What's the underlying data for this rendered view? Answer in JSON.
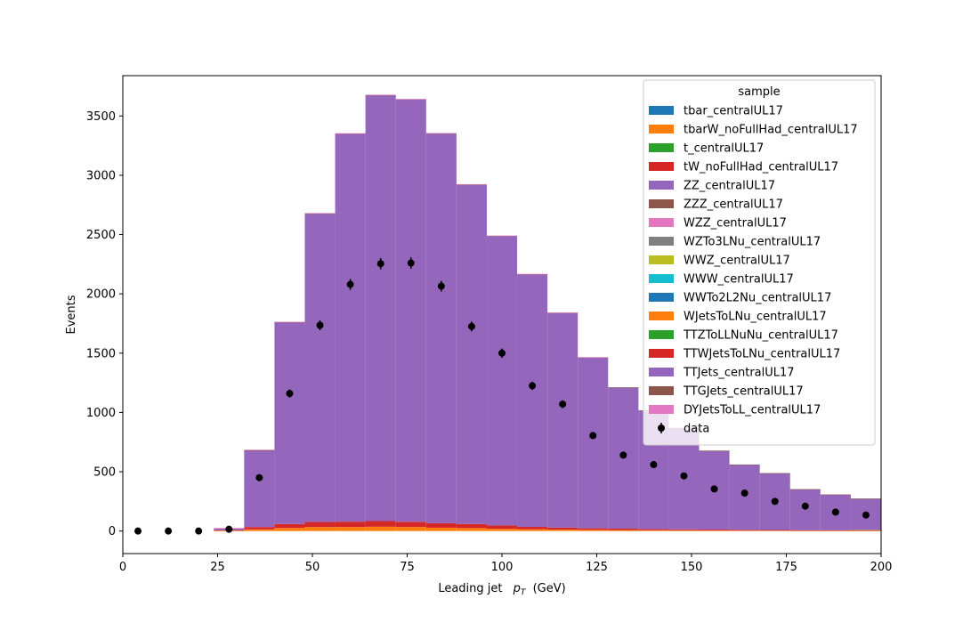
{
  "chart_data": {
    "type": "bar",
    "stacked": true,
    "xlabel_text": "Leading jet",
    "xlabel_symbol": "p",
    "xlabel_subscript": "T",
    "xlabel_unit": "(GeV)",
    "ylabel": "Events",
    "xlim": [
      0,
      200
    ],
    "ylim": [
      -190,
      3840
    ],
    "xticks": [
      0,
      25,
      50,
      75,
      100,
      125,
      150,
      175,
      200
    ],
    "yticks": [
      0,
      500,
      1000,
      1500,
      2000,
      2500,
      3000,
      3500
    ],
    "grid": false,
    "legend_title": "sample",
    "legend_position": "top-right",
    "bin_edges": [
      0,
      8,
      16,
      24,
      32,
      40,
      48,
      56,
      64,
      72,
      80,
      88,
      96,
      104,
      112,
      120,
      128,
      136,
      144,
      152,
      160,
      168,
      176,
      184,
      192,
      200
    ],
    "series": [
      {
        "name": "tbar_centralUL17",
        "color": "#1f77b4",
        "values": [
          0,
          0,
          0,
          0,
          0,
          0,
          0,
          0,
          0,
          0,
          0,
          0,
          0,
          0,
          0,
          0,
          0,
          0,
          0,
          0,
          0,
          0,
          0,
          0,
          0
        ]
      },
      {
        "name": "tbarW_noFullHad_centralUL17",
        "color": "#ff7f0e",
        "values": [
          0,
          0,
          0,
          3,
          14,
          26,
          34,
          34,
          36,
          34,
          28,
          25,
          20,
          15,
          12,
          10,
          9,
          7,
          6,
          5,
          4,
          4,
          3,
          3,
          3
        ]
      },
      {
        "name": "t_centralUL17",
        "color": "#2ca02c",
        "values": [
          0,
          0,
          0,
          0,
          0,
          0,
          0,
          0,
          0,
          0,
          0,
          0,
          0,
          0,
          0,
          0,
          0,
          0,
          0,
          0,
          0,
          0,
          0,
          0,
          0
        ]
      },
      {
        "name": "tW_noFullHad_centralUL17",
        "color": "#d62728",
        "values": [
          0,
          0,
          0,
          5,
          20,
          33,
          42,
          45,
          48,
          44,
          38,
          34,
          27,
          20,
          17,
          13,
          11,
          9,
          8,
          7,
          6,
          5,
          4,
          4,
          3
        ]
      },
      {
        "name": "ZZ_centralUL17",
        "color": "#9467bd",
        "values": [
          0,
          0,
          0,
          0,
          0,
          0,
          0,
          0,
          0,
          0,
          0,
          0,
          0,
          0,
          0,
          0,
          0,
          0,
          0,
          0,
          0,
          0,
          0,
          0,
          0
        ]
      },
      {
        "name": "ZZZ_centralUL17",
        "color": "#8c564b",
        "values": [
          0,
          0,
          0,
          0,
          0,
          0,
          0,
          0,
          0,
          0,
          0,
          0,
          0,
          0,
          0,
          0,
          0,
          0,
          0,
          0,
          0,
          0,
          0,
          0,
          0
        ]
      },
      {
        "name": "WZZ_centralUL17",
        "color": "#e377c2",
        "values": [
          0,
          0,
          0,
          0,
          0,
          0,
          0,
          0,
          0,
          0,
          0,
          0,
          0,
          0,
          0,
          0,
          0,
          0,
          0,
          0,
          0,
          0,
          0,
          0,
          0
        ]
      },
      {
        "name": "WZTo3LNu_centralUL17",
        "color": "#7f7f7f",
        "values": [
          0,
          0,
          0,
          0,
          0,
          0,
          0,
          0,
          0,
          0,
          0,
          0,
          0,
          0,
          0,
          0,
          0,
          0,
          0,
          0,
          0,
          0,
          0,
          0,
          0
        ]
      },
      {
        "name": "WWZ_centralUL17",
        "color": "#bcbd22",
        "values": [
          0,
          0,
          0,
          0,
          0,
          0,
          0,
          0,
          0,
          0,
          0,
          0,
          0,
          0,
          0,
          0,
          0,
          0,
          0,
          0,
          0,
          0,
          0,
          0,
          2
        ]
      },
      {
        "name": "WWW_centralUL17",
        "color": "#17becf",
        "values": [
          0,
          0,
          0,
          0,
          0,
          0,
          0,
          0,
          0,
          0,
          0,
          0,
          0,
          0,
          0,
          0,
          0,
          0,
          0,
          0,
          0,
          0,
          0,
          0,
          0
        ]
      },
      {
        "name": "WWTo2L2Nu_centralUL17",
        "color": "#1f77b4",
        "values": [
          0,
          0,
          0,
          0,
          0,
          0,
          0,
          0,
          0,
          0,
          0,
          0,
          0,
          0,
          0,
          0,
          0,
          0,
          0,
          0,
          0,
          0,
          0,
          0,
          0
        ]
      },
      {
        "name": "WJetsToLNu_centralUL17",
        "color": "#ff7f0e",
        "values": [
          0,
          0,
          0,
          0,
          0,
          0,
          0,
          0,
          0,
          0,
          0,
          0,
          0,
          0,
          0,
          0,
          0,
          0,
          0,
          0,
          0,
          0,
          0,
          0,
          0
        ]
      },
      {
        "name": "TTZToLLNuNu_centralUL17",
        "color": "#2ca02c",
        "values": [
          0,
          0,
          0,
          0,
          0,
          0,
          0,
          0,
          0,
          0,
          0,
          0,
          0,
          0,
          0,
          0,
          0,
          0,
          0,
          0,
          0,
          0,
          0,
          0,
          0
        ]
      },
      {
        "name": "TTWJetsToLNu_centralUL17",
        "color": "#d62728",
        "values": [
          0,
          0,
          0,
          0,
          0,
          0,
          0,
          0,
          0,
          0,
          0,
          0,
          0,
          0,
          0,
          0,
          0,
          0,
          0,
          0,
          0,
          0,
          0,
          0,
          0
        ]
      },
      {
        "name": "TTJets_centralUL17",
        "color": "#9467bd",
        "values": [
          0,
          0,
          0,
          15,
          645,
          1700,
          2600,
          3270,
          3590,
          3560,
          3285,
          2860,
          2440,
          2130,
          1810,
          1440,
          1190,
          1000,
          855,
          665,
          550,
          478,
          345,
          300,
          265
        ]
      },
      {
        "name": "TTGJets_centralUL17",
        "color": "#8c564b",
        "values": [
          0,
          0,
          0,
          0,
          2,
          3,
          3,
          3,
          3,
          3,
          3,
          3,
          3,
          2,
          2,
          2,
          2,
          1,
          1,
          1,
          1,
          1,
          1,
          1,
          1
        ]
      },
      {
        "name": "DYJetsToLL_centralUL17",
        "color": "#e377c2",
        "values": [
          0,
          0,
          0,
          2,
          5,
          2,
          2,
          2,
          2,
          2,
          2,
          2,
          1,
          1,
          1,
          1,
          0,
          0,
          0,
          0,
          0,
          0,
          0,
          0,
          0
        ]
      }
    ],
    "data_series": {
      "name": "data",
      "color": "#000000",
      "x": [
        4,
        12,
        20,
        28,
        36,
        44,
        52,
        60,
        68,
        76,
        84,
        92,
        100,
        108,
        116,
        124,
        132,
        140,
        148,
        156,
        164,
        172,
        180,
        188,
        196
      ],
      "y": [
        0,
        0,
        0,
        15,
        450,
        1160,
        1735,
        2080,
        2255,
        2260,
        2065,
        1725,
        1500,
        1225,
        1070,
        805,
        640,
        560,
        465,
        355,
        320,
        250,
        210,
        160,
        135
      ],
      "yerr": [
        0,
        0,
        0,
        4,
        21,
        34,
        42,
        46,
        47,
        48,
        45,
        42,
        39,
        35,
        33,
        28,
        25,
        24,
        22,
        19,
        18,
        16,
        15,
        13,
        12
      ]
    }
  }
}
